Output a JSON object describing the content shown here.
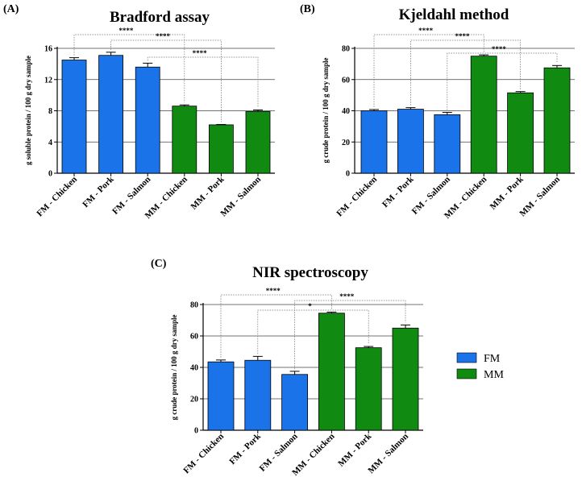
{
  "colors": {
    "FM": "#1a73e8",
    "MM": "#118a11"
  },
  "legend": [
    {
      "label": "FM",
      "color": "#1a73e8"
    },
    {
      "label": "MM",
      "color": "#118a11"
    }
  ],
  "chart_data": [
    {
      "panel": "(A)",
      "type": "bar",
      "title": "Bradford assay",
      "ylabel": "g soluble protein / 100 g dry sample",
      "ylim": [
        0,
        16
      ],
      "yticks": [
        0,
        4,
        8,
        12,
        16
      ],
      "categories": [
        "FM - Chicken",
        "FM - Pork",
        "FM - Salmon",
        "MM - Chicken",
        "MM - Pork",
        "MM - Salmon"
      ],
      "groups": [
        "FM",
        "FM",
        "FM",
        "MM",
        "MM",
        "MM"
      ],
      "values": [
        14.5,
        15.1,
        13.6,
        8.6,
        6.2,
        7.9
      ],
      "errors": [
        0.3,
        0.4,
        0.5,
        0.15,
        0.05,
        0.2
      ],
      "comparisons": [
        {
          "from": 0,
          "to": 3,
          "label": "****"
        },
        {
          "from": 1,
          "to": 4,
          "label": "****"
        },
        {
          "from": 2,
          "to": 5,
          "label": "****"
        }
      ]
    },
    {
      "panel": "(B)",
      "type": "bar",
      "title": "Kjeldahl method",
      "ylabel": "g crude protein / 100 g dry sample",
      "ylim": [
        0,
        80
      ],
      "yticks": [
        0,
        20,
        40,
        60,
        80
      ],
      "categories": [
        "FM - Chicken",
        "FM - Pork",
        "FM - Salmon",
        "MM - Chicken",
        "MM - Pork",
        "MM - Salmon"
      ],
      "groups": [
        "FM",
        "FM",
        "FM",
        "MM",
        "MM",
        "MM"
      ],
      "values": [
        40,
        41,
        37.5,
        75,
        51.5,
        67.5
      ],
      "errors": [
        0.8,
        1.0,
        1.5,
        0.8,
        0.8,
        1.5
      ],
      "comparisons": [
        {
          "from": 0,
          "to": 3,
          "label": "****"
        },
        {
          "from": 1,
          "to": 4,
          "label": "****"
        },
        {
          "from": 2,
          "to": 5,
          "label": "****"
        }
      ]
    },
    {
      "panel": "(C)",
      "type": "bar",
      "title": "NIR spectroscopy",
      "ylabel": "g crude protein / 100 g dry sample",
      "ylim": [
        0,
        80
      ],
      "yticks": [
        0,
        20,
        40,
        60,
        80
      ],
      "categories": [
        "FM - Chicken",
        "FM - Pork",
        "FM - Salmon",
        "MM - Chicken",
        "MM - Pork",
        "MM - Salmon"
      ],
      "groups": [
        "FM",
        "FM",
        "FM",
        "MM",
        "MM",
        "MM"
      ],
      "values": [
        43.5,
        44.5,
        35.5,
        74.5,
        52.5,
        65
      ],
      "errors": [
        1.2,
        2.5,
        2.0,
        0.7,
        0.8,
        2.0
      ],
      "comparisons": [
        {
          "from": 0,
          "to": 3,
          "label": "****"
        },
        {
          "from": 1,
          "to": 4,
          "label": "*"
        },
        {
          "from": 2,
          "to": 5,
          "label": "****"
        }
      ]
    }
  ]
}
